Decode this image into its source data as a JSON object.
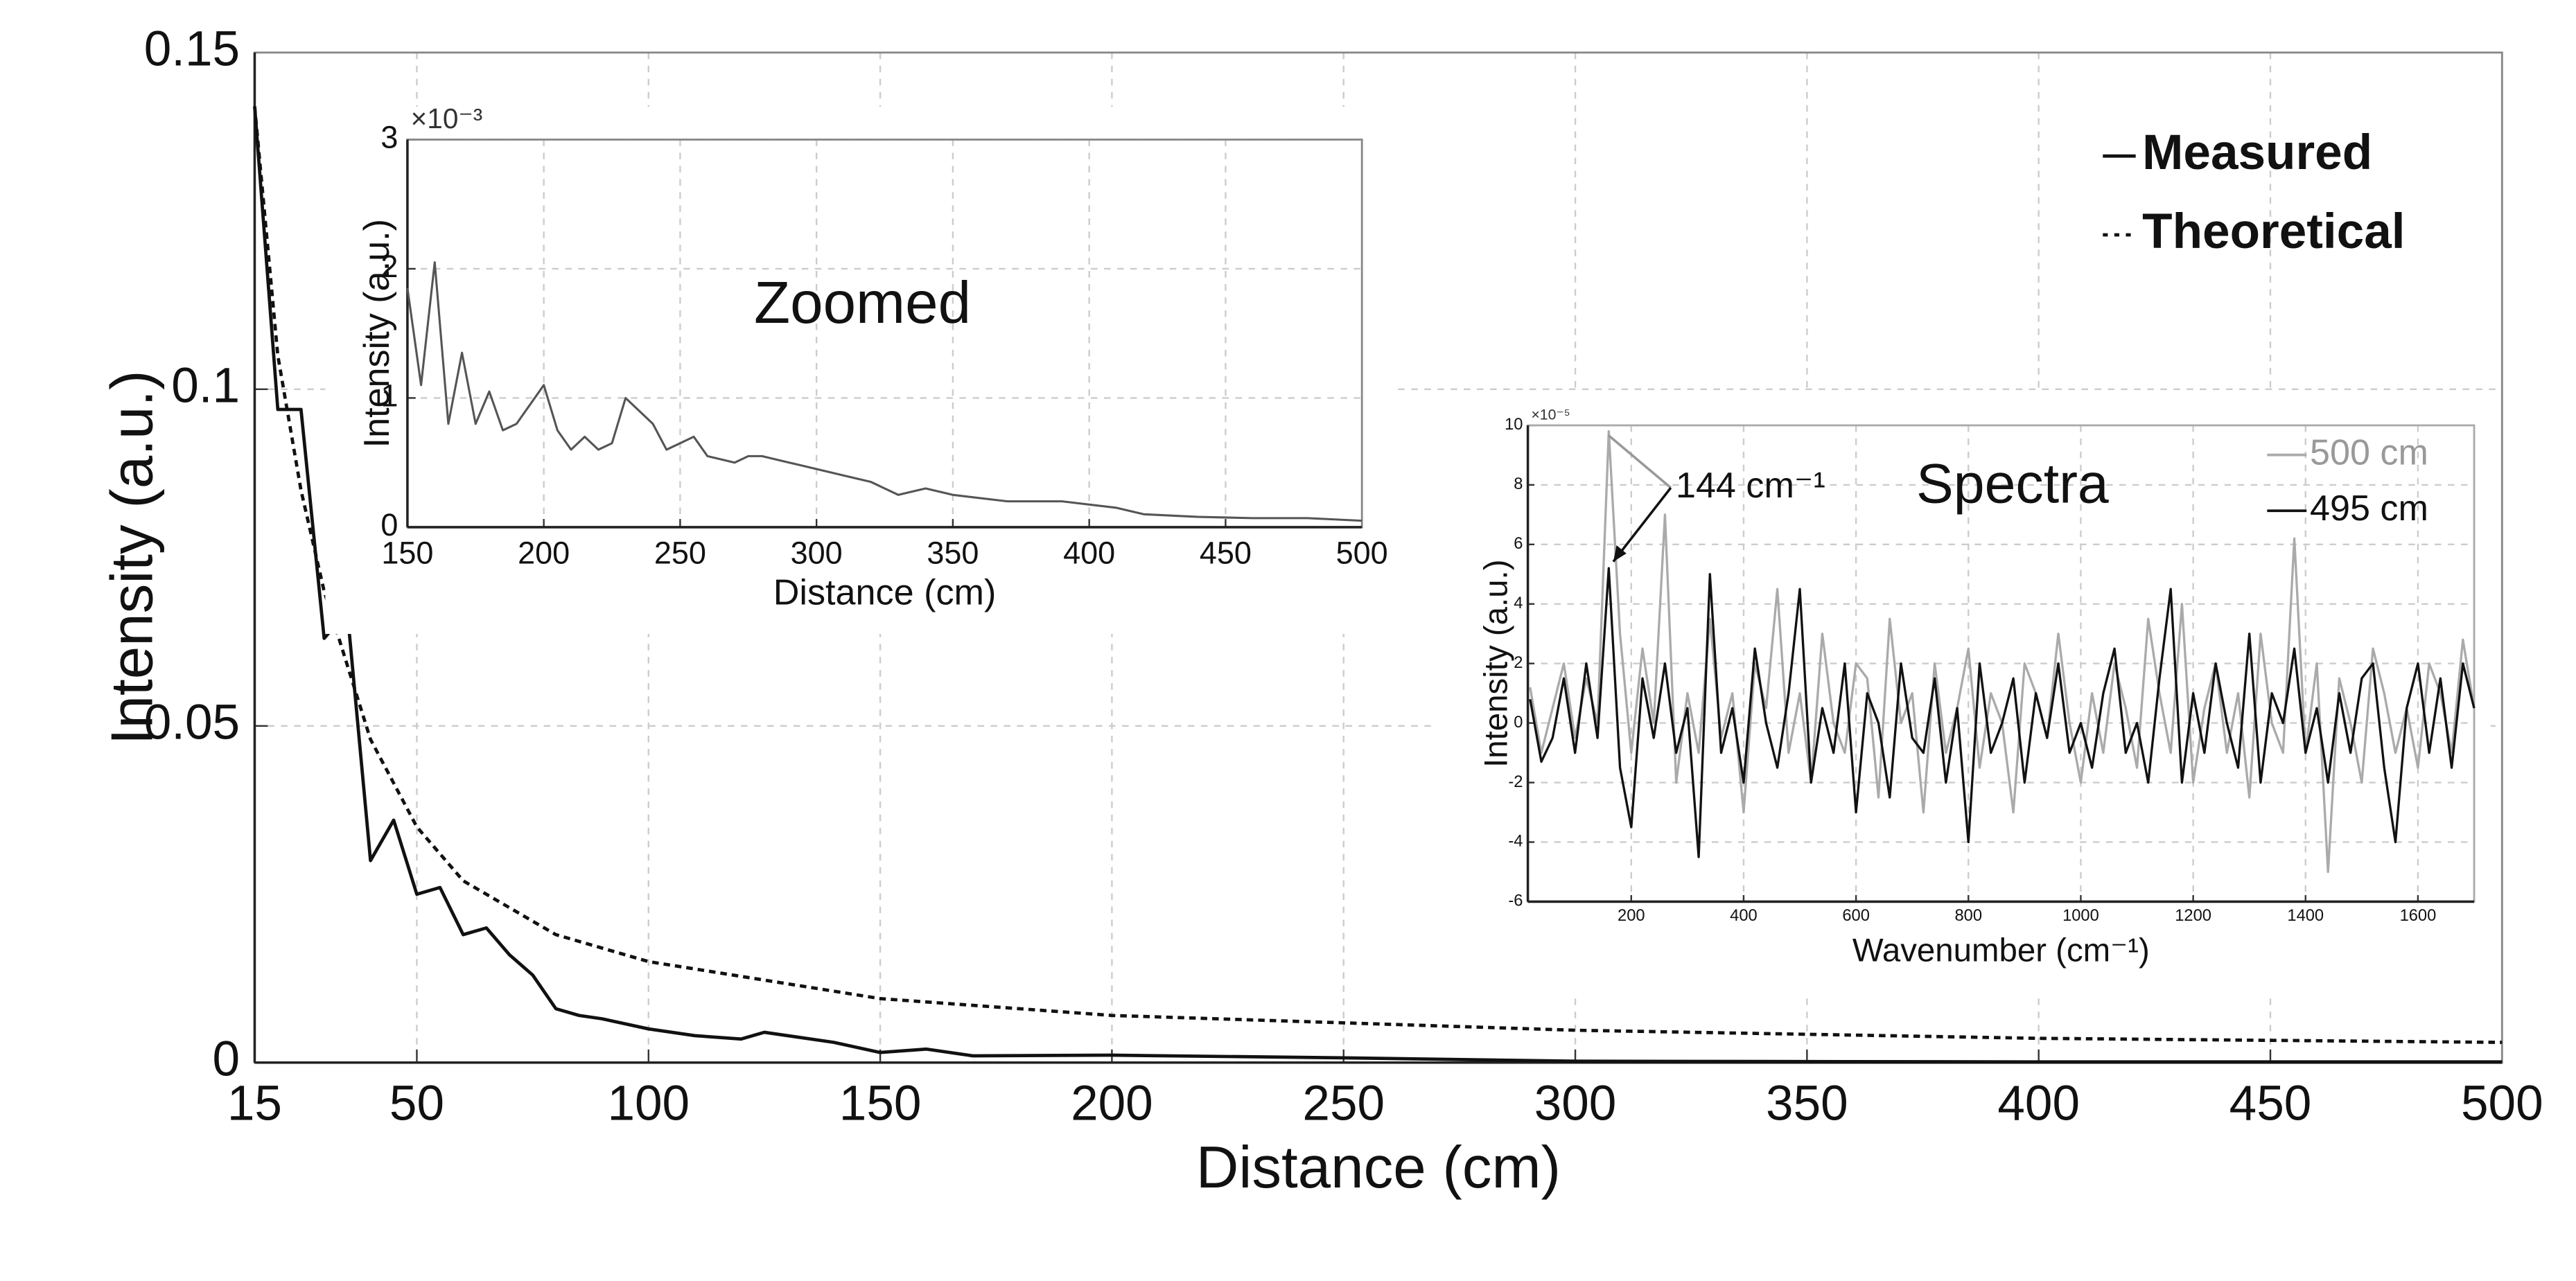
{
  "chart_data": [
    {
      "type": "line",
      "x_label": "Distance (cm)",
      "y_label": "Intensity (a.u.)",
      "xlim": [
        15,
        500
      ],
      "xticks": [
        15,
        50,
        100,
        150,
        200,
        250,
        300,
        350,
        400,
        450,
        500
      ],
      "ylim": [
        0,
        0.15
      ],
      "yticks": [
        0,
        0.05,
        0.1,
        0.15
      ],
      "grid": true,
      "legend": "upper right",
      "series": [
        {
          "name": "Measured",
          "color": "#111111",
          "dash": false,
          "x": [
            15,
            20,
            25,
            30,
            35,
            40,
            45,
            50,
            55,
            60,
            65,
            70,
            75,
            80,
            85,
            90,
            100,
            110,
            120,
            125,
            130,
            140,
            150,
            160,
            170,
            200,
            250,
            300,
            400,
            500
          ],
          "values": [
            0.142,
            0.097,
            0.097,
            0.063,
            0.067,
            0.03,
            0.036,
            0.025,
            0.026,
            0.019,
            0.02,
            0.016,
            0.013,
            0.008,
            0.007,
            0.0065,
            0.005,
            0.004,
            0.0035,
            0.0045,
            0.004,
            0.003,
            0.0015,
            0.002,
            0.001,
            0.0011,
            0.0007,
            0.0002,
            0.0001,
            0.0001
          ]
        },
        {
          "name": "Theoretical",
          "color": "#111111",
          "dash": true,
          "x": [
            15,
            20,
            25,
            30,
            40,
            50,
            60,
            80,
            100,
            150,
            200,
            300,
            400,
            500
          ],
          "values": [
            0.142,
            0.105,
            0.085,
            0.07,
            0.048,
            0.035,
            0.027,
            0.019,
            0.015,
            0.0095,
            0.007,
            0.0048,
            0.0036,
            0.003
          ]
        }
      ]
    },
    {
      "type": "line",
      "annotation": "Zoomed",
      "x_label": "Distance (cm)",
      "y_label": "Intensity (a.u.)",
      "y_multiplier": "×10⁻³",
      "xlim": [
        150,
        500
      ],
      "xticks": [
        150,
        200,
        250,
        300,
        350,
        400,
        450,
        500
      ],
      "ylim": [
        0,
        3
      ],
      "yticks": [
        0,
        1,
        2,
        3
      ],
      "grid": true,
      "series": [
        {
          "color": "#555555",
          "dash": false,
          "x": [
            150,
            155,
            160,
            165,
            170,
            175,
            180,
            185,
            190,
            200,
            205,
            210,
            215,
            220,
            225,
            230,
            240,
            245,
            255,
            260,
            270,
            275,
            280,
            290,
            300,
            310,
            320,
            330,
            340,
            350,
            370,
            390,
            410,
            420,
            440,
            460,
            480,
            500
          ],
          "values": [
            1.85,
            1.1,
            2.05,
            0.8,
            1.35,
            0.8,
            1.05,
            0.75,
            0.8,
            1.1,
            0.75,
            0.6,
            0.7,
            0.6,
            0.65,
            1.0,
            0.8,
            0.6,
            0.7,
            0.55,
            0.5,
            0.55,
            0.55,
            0.5,
            0.45,
            0.4,
            0.35,
            0.25,
            0.3,
            0.25,
            0.2,
            0.2,
            0.15,
            0.1,
            0.08,
            0.07,
            0.07,
            0.05
          ]
        }
      ]
    },
    {
      "type": "line",
      "annotation": "Spectra",
      "peak_label": "144 cm⁻¹",
      "x_label": "Wavenumber (cm⁻¹)",
      "y_label": "Intensity (a.u.)",
      "y_multiplier": "×10⁻⁵",
      "xlim": [
        16,
        1700
      ],
      "xticks": [
        200,
        400,
        600,
        800,
        1000,
        1200,
        1400,
        1600
      ],
      "ylim": [
        -6,
        10
      ],
      "yticks": [
        -6,
        -4,
        -2,
        0,
        2,
        4,
        6,
        8,
        10
      ],
      "grid": true,
      "legend": "upper right",
      "x": [
        20,
        40,
        60,
        80,
        100,
        120,
        140,
        160,
        180,
        200,
        220,
        240,
        260,
        280,
        300,
        320,
        340,
        360,
        380,
        400,
        420,
        440,
        460,
        480,
        500,
        520,
        540,
        560,
        580,
        600,
        620,
        640,
        660,
        680,
        700,
        720,
        740,
        760,
        780,
        800,
        820,
        840,
        860,
        880,
        900,
        920,
        940,
        960,
        980,
        1000,
        1020,
        1040,
        1060,
        1080,
        1100,
        1120,
        1140,
        1160,
        1180,
        1200,
        1220,
        1240,
        1260,
        1280,
        1300,
        1320,
        1340,
        1360,
        1380,
        1400,
        1420,
        1440,
        1460,
        1480,
        1500,
        1520,
        1540,
        1560,
        1580,
        1600,
        1620,
        1640,
        1660,
        1680,
        1700
      ],
      "series": [
        {
          "name": "500 cm",
          "color": "#aaaaaa",
          "dash": false,
          "values": [
            1.2,
            -1,
            0.5,
            2,
            -0.5,
            1.5,
            0,
            9.8,
            3,
            -1,
            2.5,
            0,
            7,
            -2,
            1,
            -1,
            3.5,
            -0.5,
            1,
            -3,
            2,
            0.5,
            4.5,
            -1,
            1,
            -2,
            3,
            0,
            -1,
            2,
            1.5,
            -2.5,
            3.5,
            0,
            1,
            -3,
            2,
            -1,
            0.5,
            2.5,
            -1.5,
            1,
            0,
            -3,
            2,
            1,
            -0.5,
            3,
            0,
            -2,
            1,
            -1,
            2,
            0.5,
            -1.5,
            3.5,
            1,
            -1,
            4,
            -2,
            0.5,
            2,
            -1,
            1,
            -2.5,
            3,
            0,
            -1,
            6.2,
            -1,
            2,
            -5,
            1.5,
            0,
            -2,
            2.5,
            1,
            -1,
            0.5,
            -1.5,
            2,
            1,
            -1,
            2.8,
            0.5
          ]
        },
        {
          "name": "495 cm",
          "color": "#111111",
          "dash": false,
          "values": [
            0.8,
            -1.3,
            -0.5,
            1.5,
            -1,
            2,
            -0.5,
            5.2,
            -1.5,
            -3.5,
            1.5,
            -0.5,
            2,
            -1,
            0.5,
            -4.5,
            5,
            -1,
            0.5,
            -2,
            2.5,
            0,
            -1.5,
            1,
            4.5,
            -2,
            0.5,
            -1,
            2,
            -3,
            1,
            0,
            -2.5,
            2,
            -0.5,
            -1,
            1.5,
            -2,
            0.5,
            -4,
            2,
            -1,
            0,
            1.5,
            -2,
            1,
            -0.5,
            2,
            -1,
            0,
            -1.5,
            1,
            2.5,
            -1,
            0,
            -2,
            1.5,
            4.5,
            -2,
            1,
            -1,
            2,
            0,
            -1.5,
            3,
            -2,
            1,
            0,
            2.5,
            -1,
            0.5,
            -2,
            1,
            -1,
            1.5,
            2,
            -1.5,
            -4,
            0.5,
            2,
            -1,
            1.5,
            -1.5,
            2,
            0.5
          ]
        }
      ]
    }
  ]
}
